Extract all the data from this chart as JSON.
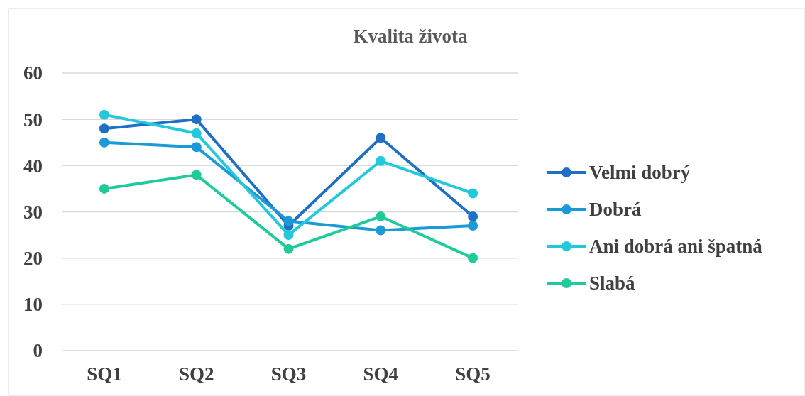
{
  "chart_data": {
    "type": "line",
    "title": "Kvalita života",
    "categories": [
      "SQ1",
      "SQ2",
      "SQ3",
      "SQ4",
      "SQ5"
    ],
    "series": [
      {
        "name": "Velmi dobrý",
        "color": "#1f6fc5",
        "values": [
          48,
          50,
          27,
          46,
          29
        ]
      },
      {
        "name": "Dobrá",
        "color": "#1a9ad6",
        "values": [
          45,
          44,
          28,
          26,
          27
        ]
      },
      {
        "name": "Ani dobrá ani špatná",
        "color": "#22c8dc",
        "values": [
          51,
          47,
          25,
          41,
          34
        ]
      },
      {
        "name": "Slabá",
        "color": "#1fcb9b",
        "values": [
          35,
          38,
          22,
          29,
          20
        ]
      }
    ],
    "ylim": [
      0,
      60
    ],
    "yticks": [
      0,
      10,
      20,
      30,
      40,
      50,
      60
    ],
    "grid": "y",
    "legend": "right",
    "marker": "circle",
    "line_style": "solid"
  }
}
